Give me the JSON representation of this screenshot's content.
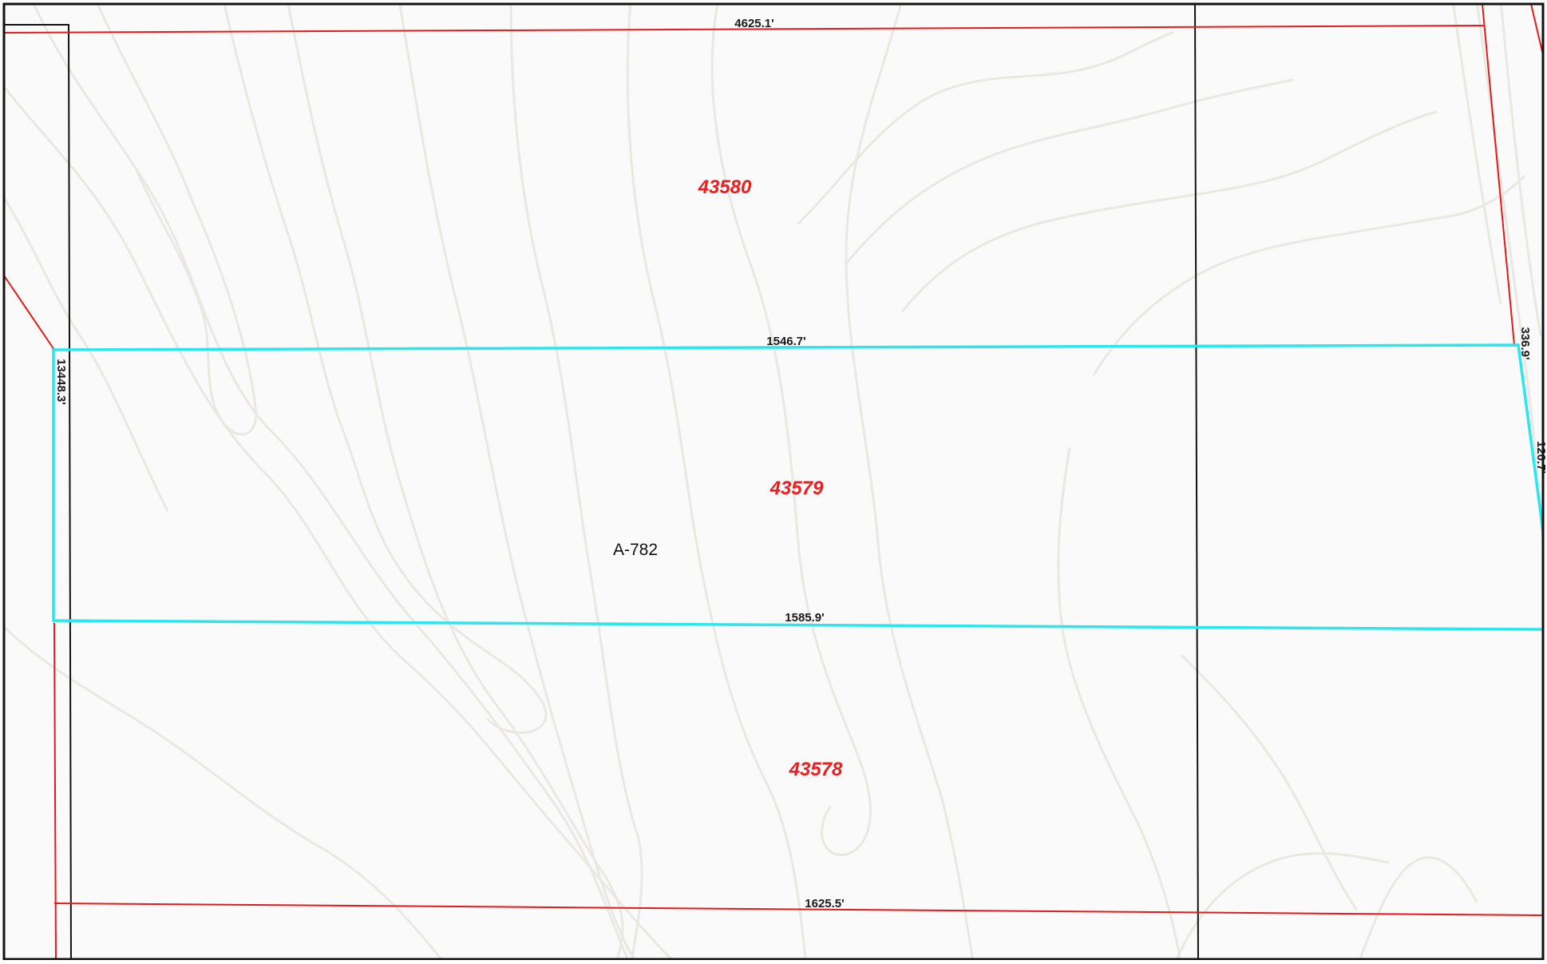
{
  "map": {
    "parcels": [
      {
        "id": "43580",
        "color": "#ee1c1c"
      },
      {
        "id": "43579",
        "color": "#ee1c1c"
      },
      {
        "id": "43578",
        "color": "#ee1c1c"
      }
    ],
    "abstract_label": "A-782",
    "dimensions": {
      "top_boundary": "4625.1'",
      "selected_top": "1546.7'",
      "selected_bottom": "1585.9'",
      "bottom_boundary": "1625.5'",
      "left_side": "13448.3'",
      "right_side": "336.9'",
      "right_side_lower": "120.7'"
    },
    "colors": {
      "parcel_line": "#e31b1b",
      "selected_outline": "#29e6ef",
      "survey_line": "#111111",
      "contour_line": "#e9e8e2",
      "background": "#fafafa"
    }
  }
}
